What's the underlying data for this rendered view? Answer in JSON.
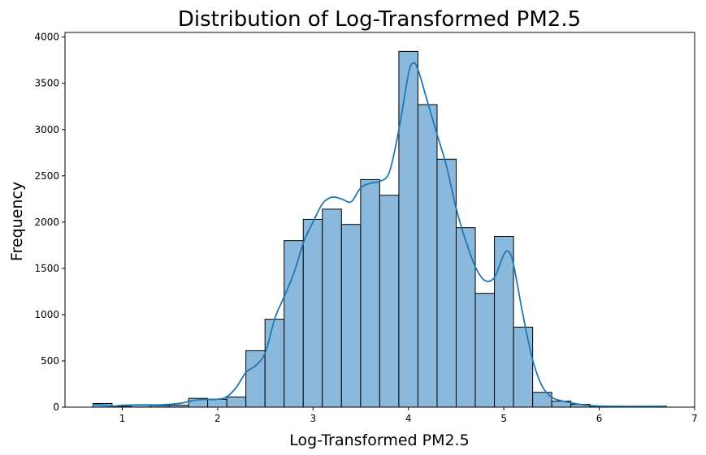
{
  "chart_data": {
    "type": "bar",
    "subtype": "histogram-with-kde",
    "title": "Distribution of Log-Transformed PM2.5",
    "xlabel": "Log-Transformed PM2.5",
    "ylabel": "Frequency",
    "xlim": [
      0.4,
      7
    ],
    "ylim": [
      0,
      4050
    ],
    "xticks": [
      1,
      2,
      3,
      4,
      5,
      6,
      7
    ],
    "yticks": [
      0,
      500,
      1000,
      1500,
      2000,
      2500,
      3000,
      3500,
      4000
    ],
    "grid": false,
    "legend": "none",
    "bar_color": "#8bb9db",
    "bar_edge_color": "#000000",
    "line_color": "#1f77b4",
    "bins": {
      "start": 0.693,
      "width": 0.2004,
      "counts": [
        40,
        8,
        22,
        18,
        20,
        95,
        85,
        110,
        610,
        950,
        1800,
        2030,
        2140,
        1975,
        2460,
        2290,
        3845,
        3270,
        2680,
        1940,
        1230,
        1845,
        865,
        160,
        65,
        30,
        10,
        5,
        3,
        2
      ]
    },
    "kde": {
      "x": [
        0.69,
        0.8,
        0.9,
        1.0,
        1.2,
        1.4,
        1.6,
        1.8,
        2.0,
        2.1,
        2.2,
        2.3,
        2.4,
        2.5,
        2.6,
        2.7,
        2.8,
        2.9,
        3.0,
        3.1,
        3.2,
        3.3,
        3.4,
        3.5,
        3.6,
        3.7,
        3.8,
        3.9,
        4.0,
        4.05,
        4.1,
        4.2,
        4.3,
        4.4,
        4.5,
        4.6,
        4.7,
        4.8,
        4.9,
        5.0,
        5.05,
        5.1,
        5.2,
        5.3,
        5.4,
        5.5,
        5.6,
        5.8,
        6.0,
        6.3,
        6.71
      ],
      "y": [
        30,
        22,
        10,
        20,
        25,
        25,
        40,
        80,
        85,
        115,
        220,
        380,
        450,
        590,
        960,
        1200,
        1450,
        1780,
        2000,
        2200,
        2270,
        2250,
        2220,
        2370,
        2420,
        2440,
        2540,
        3000,
        3600,
        3720,
        3650,
        3300,
        2950,
        2600,
        2150,
        1800,
        1520,
        1370,
        1400,
        1650,
        1680,
        1550,
        1000,
        520,
        230,
        110,
        70,
        30,
        12,
        8,
        10
      ]
    }
  }
}
